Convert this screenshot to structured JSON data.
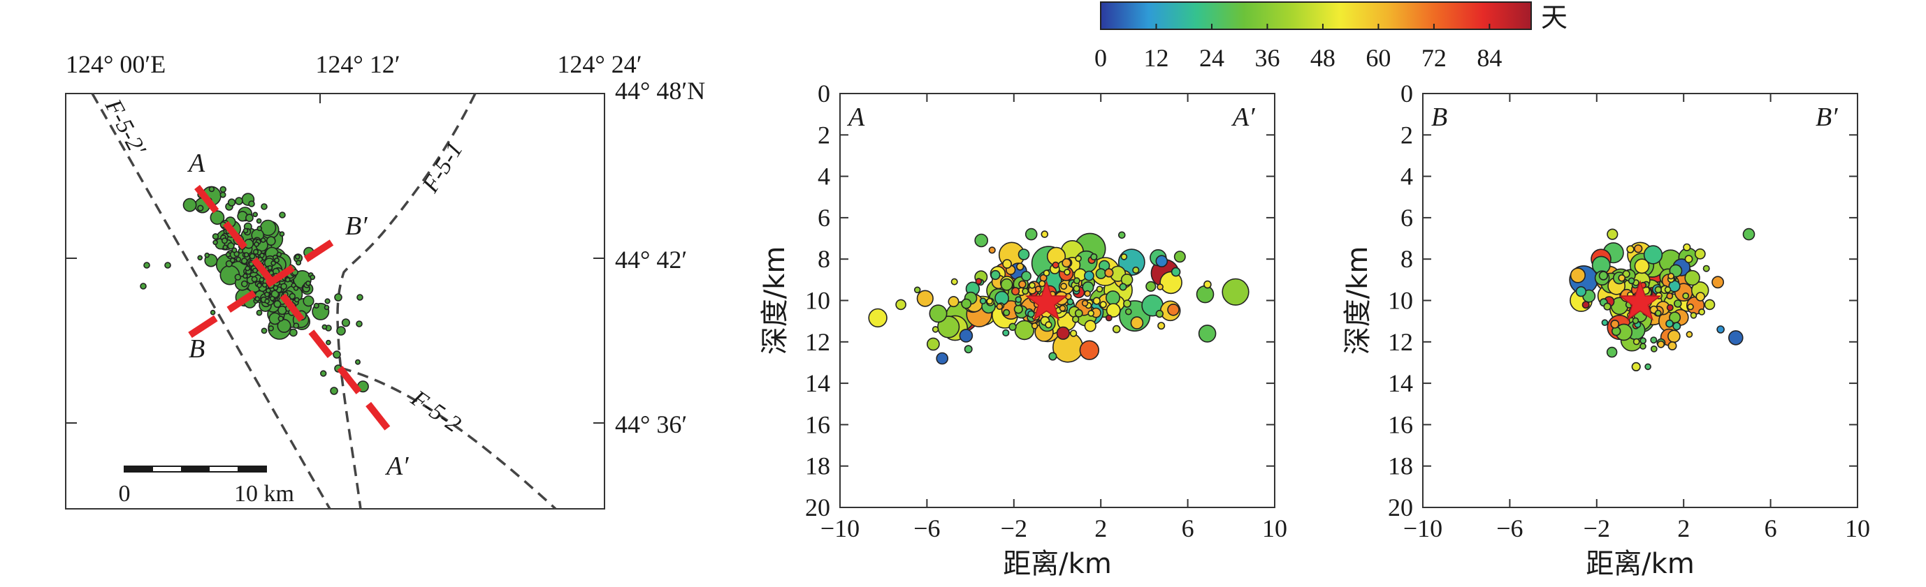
{
  "map": {
    "lon_labels": [
      "124° 00′E",
      "124° 12′",
      "124° 24′"
    ],
    "lat_labels": [
      "44° 48′N",
      "44° 42′",
      "44° 36′"
    ],
    "fault_labels": [
      {
        "text": "F-5-2′",
        "icon": "fault-F-5-2-prime"
      },
      {
        "text": "F-5-1",
        "icon": "fault-F-5-1"
      },
      {
        "text": "F-5-2",
        "icon": "fault-F-5-2"
      }
    ],
    "profile_labels": [
      "A",
      "B′",
      "B",
      "A′"
    ],
    "scalebar": {
      "start": "0",
      "end": "10 km"
    },
    "profile_color": "#e8262a"
  },
  "colorbar": {
    "ticks": [
      "0",
      "12",
      "24",
      "36",
      "48",
      "60",
      "72",
      "84"
    ],
    "unit": "天",
    "range": [
      0,
      93
    ],
    "stops": [
      "#2b3a9e",
      "#2f9bd6",
      "#35c28e",
      "#6cc23a",
      "#a8d52f",
      "#f2ec33",
      "#f2b52c",
      "#ef6a24",
      "#e52a27",
      "#a31c2a"
    ]
  },
  "sections": [
    {
      "corner_labels": [
        "A",
        "A′"
      ],
      "xlabel": "距离/km",
      "ylabel": "深度/km",
      "xticks": [
        "−10",
        "−6",
        "−2",
        "2",
        "6",
        "10"
      ],
      "yticks": [
        "0",
        "2",
        "4",
        "6",
        "8",
        "10",
        "12",
        "14",
        "16",
        "18",
        "20"
      ],
      "xlim": [
        -10,
        10
      ],
      "ylim": [
        0,
        20
      ],
      "mainshock": {
        "x": -0.5,
        "y": 10.1
      }
    },
    {
      "corner_labels": [
        "B",
        "B′"
      ],
      "xlabel": "距离/km",
      "ylabel": "深度/km",
      "xticks": [
        "−10",
        "−6",
        "−2",
        "2",
        "6",
        "10"
      ],
      "yticks": [
        "0",
        "2",
        "4",
        "6",
        "8",
        "10",
        "12",
        "14",
        "16",
        "18",
        "20"
      ],
      "xlim": [
        -10,
        10
      ],
      "ylim": [
        0,
        20
      ],
      "mainshock": {
        "x": 0.0,
        "y": 10.1
      }
    }
  ]
}
